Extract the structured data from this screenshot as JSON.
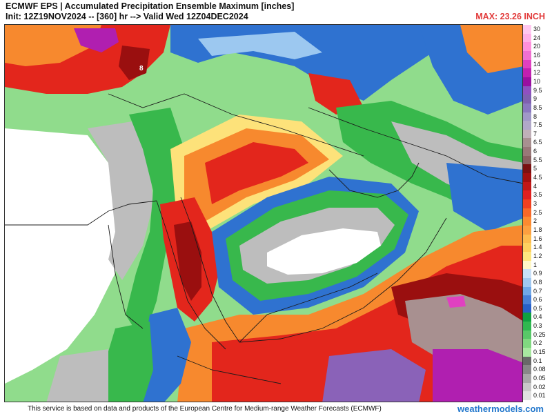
{
  "header": {
    "title_line1": "ECMWF EPS | Accumulated Precipitation Ensemble Maximum [inches]",
    "title_line2": "Init: 12Z19NOV2024 -- [360] hr --> Valid Wed 12Z04DEC2024",
    "max_label": "MAX: 23.26 INCH"
  },
  "legend": {
    "items": [
      {
        "label": "30",
        "color": "#ffc8f0"
      },
      {
        "label": "24",
        "color": "#ffb0e8"
      },
      {
        "label": "20",
        "color": "#ff90dc"
      },
      {
        "label": "16",
        "color": "#f070d0"
      },
      {
        "label": "14",
        "color": "#e040c0"
      },
      {
        "label": "12",
        "color": "#c020b0"
      },
      {
        "label": "10",
        "color": "#9a10a0"
      },
      {
        "label": "9.5",
        "color": "#9050c0"
      },
      {
        "label": "9",
        "color": "#8060b0"
      },
      {
        "label": "8.5",
        "color": "#8a78c0"
      },
      {
        "label": "8",
        "color": "#a098c8"
      },
      {
        "label": "7.5",
        "color": "#b0a8c8"
      },
      {
        "label": "7",
        "color": "#c0b0b8"
      },
      {
        "label": "6.5",
        "color": "#a89090"
      },
      {
        "label": "6",
        "color": "#987878"
      },
      {
        "label": "5.5",
        "color": "#886060"
      },
      {
        "label": "5",
        "color": "#7a1010"
      },
      {
        "label": "4.5",
        "color": "#a01010"
      },
      {
        "label": "4",
        "color": "#c01818"
      },
      {
        "label": "3.5",
        "color": "#e02020"
      },
      {
        "label": "3",
        "color": "#f04020"
      },
      {
        "label": "2.5",
        "color": "#f86828"
      },
      {
        "label": "2",
        "color": "#fc8a30"
      },
      {
        "label": "1.8",
        "color": "#fca040"
      },
      {
        "label": "1.6",
        "color": "#fdbc50"
      },
      {
        "label": "1.4",
        "color": "#fdd060"
      },
      {
        "label": "1.2",
        "color": "#fde680"
      },
      {
        "label": "1",
        "color": "#fff8c8"
      },
      {
        "label": "0.9",
        "color": "#c8e0f8"
      },
      {
        "label": "0.8",
        "color": "#a0c8f0"
      },
      {
        "label": "0.7",
        "color": "#70a8e8"
      },
      {
        "label": "0.6",
        "color": "#4880d8"
      },
      {
        "label": "0.5",
        "color": "#2860c8"
      },
      {
        "label": "0.4",
        "color": "#10a040"
      },
      {
        "label": "0.3",
        "color": "#30b850"
      },
      {
        "label": "0.25",
        "color": "#58c868"
      },
      {
        "label": "0.2",
        "color": "#80d880"
      },
      {
        "label": "0.15",
        "color": "#a8e8a0"
      },
      {
        "label": "0.1",
        "color": "#686868"
      },
      {
        "label": "0.08",
        "color": "#888888"
      },
      {
        "label": "0.05",
        "color": "#a8a8a8"
      },
      {
        "label": "0.02",
        "color": "#c8c8c8"
      },
      {
        "label": "0.01",
        "color": "#e0e0e0"
      }
    ]
  },
  "map": {
    "region_label": "Arabian Peninsula / Middle East",
    "colors": {
      "nodata": "#ffffff",
      "trace": "#bdbdbd",
      "green": "#38b84c",
      "lightgreen": "#90dc8c",
      "blue": "#2f72d0",
      "lightblue": "#9cc8f0",
      "yellow": "#fde27a",
      "orange": "#f7892e",
      "red": "#e3261c",
      "darkred": "#9a0f0f",
      "magenta": "#b01fb0",
      "purple": "#8a62b8",
      "border": "#1a1a1a"
    },
    "marker_value": "8"
  },
  "footer": {
    "note": "This service is based on data and products of the European Centre for Medium-range Weather Forecasts (ECMWF)",
    "brand": "weathermodels.com"
  }
}
